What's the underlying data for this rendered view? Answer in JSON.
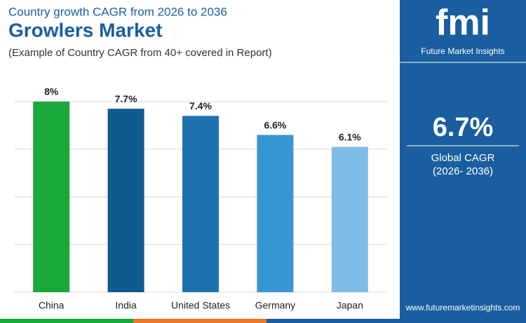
{
  "chart_data": {
    "type": "bar",
    "supertitle": "Country growth CAGR from 2026 to 2036",
    "title": "Growlers Market",
    "subtitle": "(Example of Country CAGR from 40+ covered in Report)",
    "categories": [
      "China",
      "India",
      "United States",
      "Germany",
      "Japan"
    ],
    "values": [
      8,
      7.7,
      7.4,
      6.6,
      6.1
    ],
    "value_labels": [
      "8%",
      "7.7%",
      "7.4%",
      "6.6%",
      "6.1%"
    ],
    "colors": [
      "#19a83a",
      "#0f5a91",
      "#1b72ae",
      "#3795d6",
      "#7fbbe4"
    ],
    "ylim": [
      0,
      8
    ],
    "yticks": [
      0,
      2,
      4,
      6,
      8
    ],
    "grid": true
  },
  "sidebar": {
    "logo": "fmi",
    "brand": "Future Market Insights",
    "headline": "6.7%",
    "headline_label": "Global CAGR",
    "period": "(2026- 2036)",
    "website": "www.futuremarketinsights.com"
  }
}
